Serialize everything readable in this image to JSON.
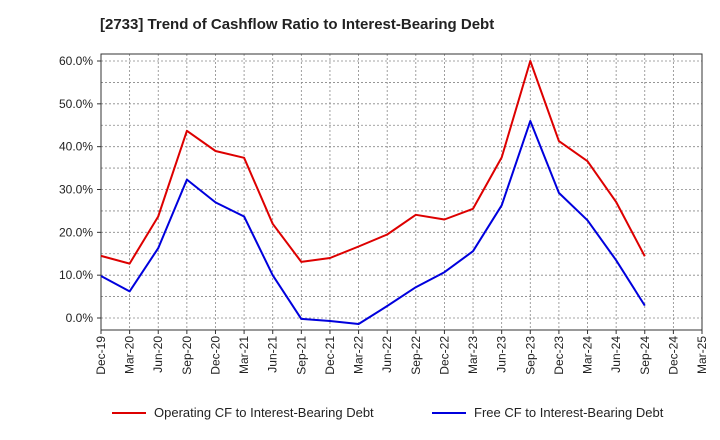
{
  "chart_data": {
    "type": "line",
    "title": "[2733]  Trend of Cashflow Ratio to Interest-Bearing Debt",
    "xlabel": "",
    "ylabel": "",
    "categories": [
      "Dec-19",
      "Mar-20",
      "Jun-20",
      "Sep-20",
      "Dec-20",
      "Mar-21",
      "Jun-21",
      "Sep-21",
      "Dec-21",
      "Mar-22",
      "Jun-22",
      "Sep-22",
      "Dec-22",
      "Mar-23",
      "Jun-23",
      "Sep-23",
      "Dec-23",
      "Mar-24",
      "Jun-24",
      "Sep-24",
      "Dec-24",
      "Mar-25"
    ],
    "y_ticks": [
      "0.0%",
      "10.0%",
      "20.0%",
      "30.0%",
      "40.0%",
      "50.0%",
      "60.0%"
    ],
    "ylim": [
      -3,
      62
    ],
    "grid": true,
    "legend_position": "bottom",
    "series": [
      {
        "name": "Operating CF to Interest-Bearing Debt",
        "color": "#dd0000",
        "values": [
          14.5,
          12.7,
          23.7,
          43.7,
          39.0,
          37.4,
          22.0,
          13.1,
          14.0,
          16.7,
          19.5,
          24.1,
          23.0,
          25.5,
          37.5,
          60.0,
          41.3,
          36.6,
          27.1,
          14.4,
          null,
          null
        ]
      },
      {
        "name": "Free CF to Interest-Bearing Debt",
        "color": "#0000dd",
        "values": [
          9.8,
          6.2,
          16.3,
          32.3,
          27.0,
          23.7,
          10.0,
          -0.2,
          -0.7,
          -1.4,
          2.8,
          7.2,
          10.7,
          15.6,
          26.3,
          46.0,
          29.2,
          22.8,
          13.5,
          2.9,
          null,
          null
        ]
      }
    ]
  }
}
